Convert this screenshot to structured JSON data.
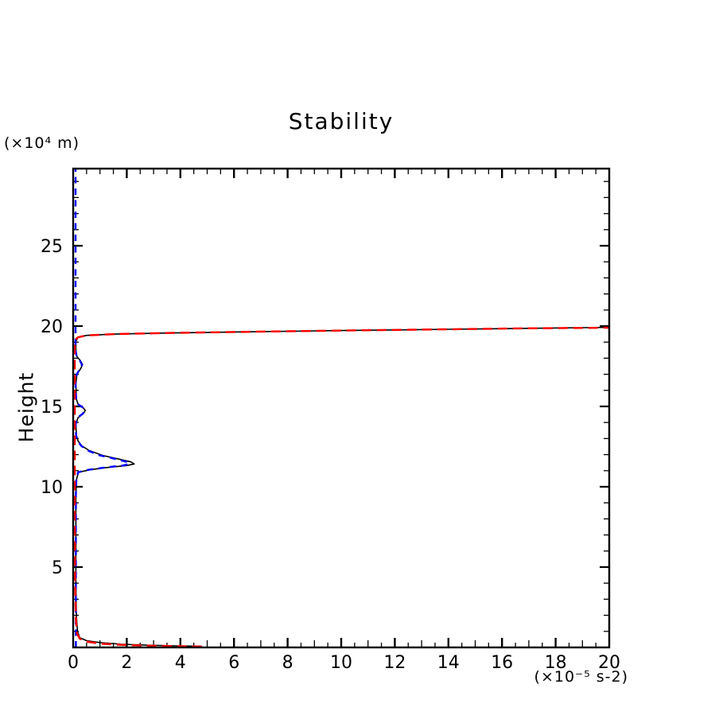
{
  "figure": {
    "title": "Stability",
    "y_axis_label": "Height",
    "y_unit_label": "(×10⁴ m)",
    "x_unit_label": "(×10⁻⁵ s-2)"
  },
  "chart_data": {
    "type": "line",
    "title": "Stability",
    "xlabel": "(×10⁻⁵ s-2)",
    "ylabel": "Height (×10⁴ m)",
    "xlim": [
      0,
      20
    ],
    "ylim": [
      0,
      29.8
    ],
    "x_major_ticks": [
      0,
      2,
      4,
      6,
      8,
      10,
      12,
      14,
      16,
      18,
      20
    ],
    "x_medium_tick_step": 1,
    "x_minor_tick_step": 0.5,
    "y_major_ticks": [
      5,
      10,
      15,
      20,
      25
    ],
    "y_minor_tick_step": 1,
    "grid": false,
    "legend": "none",
    "axis_color": "#000000",
    "series": [
      {
        "name": "profile-solid-black",
        "color": "#000000",
        "style": "solid",
        "width": 1.6,
        "points": [
          [
            4.8,
            0.07
          ],
          [
            3.8,
            0.1
          ],
          [
            2.8,
            0.14
          ],
          [
            1.8,
            0.2
          ],
          [
            1.0,
            0.3
          ],
          [
            0.5,
            0.42
          ],
          [
            0.25,
            0.6
          ],
          [
            0.16,
            1.0
          ],
          [
            0.12,
            2.0
          ],
          [
            0.1,
            4.0
          ],
          [
            0.1,
            7.0
          ],
          [
            0.1,
            9.5
          ],
          [
            0.13,
            10.5
          ],
          [
            0.2,
            10.9
          ],
          [
            0.6,
            11.05
          ],
          [
            1.3,
            11.2
          ],
          [
            2.0,
            11.32
          ],
          [
            2.28,
            11.42
          ],
          [
            2.15,
            11.55
          ],
          [
            1.7,
            11.72
          ],
          [
            1.1,
            11.95
          ],
          [
            0.6,
            12.25
          ],
          [
            0.32,
            12.55
          ],
          [
            0.18,
            12.85
          ],
          [
            0.12,
            13.2
          ],
          [
            0.1,
            13.9
          ],
          [
            0.18,
            14.3
          ],
          [
            0.38,
            14.55
          ],
          [
            0.45,
            14.75
          ],
          [
            0.36,
            14.95
          ],
          [
            0.18,
            15.15
          ],
          [
            0.12,
            15.45
          ],
          [
            0.1,
            16.4
          ],
          [
            0.14,
            17.0
          ],
          [
            0.28,
            17.35
          ],
          [
            0.35,
            17.6
          ],
          [
            0.27,
            17.85
          ],
          [
            0.14,
            18.1
          ],
          [
            0.1,
            18.5
          ],
          [
            0.1,
            19.05
          ],
          [
            0.18,
            19.3
          ],
          [
            0.5,
            19.42
          ],
          [
            1.5,
            19.5
          ],
          [
            3.5,
            19.57
          ],
          [
            6.5,
            19.64
          ],
          [
            10,
            19.72
          ],
          [
            14,
            19.8
          ],
          [
            17,
            19.86
          ],
          [
            20,
            19.92
          ]
        ]
      },
      {
        "name": "profile-blue-dashed",
        "color": "#0000ff",
        "style": "dashed",
        "dash": [
          8,
          6.5
        ],
        "width": 2.4,
        "points": [
          [
            0.1,
            0
          ],
          [
            0.1,
            5.0
          ],
          [
            0.1,
            9.5
          ],
          [
            0.12,
            10.5
          ],
          [
            0.18,
            10.9
          ],
          [
            0.55,
            11.05
          ],
          [
            1.2,
            11.2
          ],
          [
            1.85,
            11.32
          ],
          [
            2.1,
            11.42
          ],
          [
            2.0,
            11.55
          ],
          [
            1.6,
            11.72
          ],
          [
            1.0,
            11.95
          ],
          [
            0.55,
            12.25
          ],
          [
            0.3,
            12.55
          ],
          [
            0.17,
            12.85
          ],
          [
            0.11,
            13.2
          ],
          [
            0.09,
            13.9
          ],
          [
            0.17,
            14.3
          ],
          [
            0.36,
            14.55
          ],
          [
            0.43,
            14.75
          ],
          [
            0.34,
            14.95
          ],
          [
            0.17,
            15.15
          ],
          [
            0.11,
            15.45
          ],
          [
            0.09,
            16.4
          ],
          [
            0.13,
            17.0
          ],
          [
            0.26,
            17.35
          ],
          [
            0.33,
            17.6
          ],
          [
            0.25,
            17.85
          ],
          [
            0.13,
            18.1
          ],
          [
            0.09,
            18.5
          ],
          [
            0.09,
            19.4
          ],
          [
            0.09,
            24.0
          ],
          [
            0.09,
            29.8
          ]
        ]
      },
      {
        "name": "profile-red-dashed",
        "color": "#ff0000",
        "style": "dashed",
        "dash": [
          12,
          7
        ],
        "width": 2.5,
        "points": [
          [
            4.8,
            0.05
          ],
          [
            3.8,
            0.08
          ],
          [
            2.8,
            0.11
          ],
          [
            1.8,
            0.16
          ],
          [
            1.0,
            0.24
          ],
          [
            0.5,
            0.36
          ],
          [
            0.24,
            0.55
          ],
          [
            0.14,
            0.9
          ],
          [
            0.1,
            1.8
          ],
          [
            0.07,
            4.0
          ],
          [
            0.06,
            8.0
          ],
          [
            0.06,
            14.0
          ],
          [
            0.06,
            18.8
          ],
          [
            0.08,
            19.15
          ],
          [
            0.18,
            19.3
          ],
          [
            0.5,
            19.42
          ],
          [
            1.5,
            19.5
          ],
          [
            3.5,
            19.57
          ],
          [
            6.5,
            19.64
          ],
          [
            10,
            19.72
          ],
          [
            14,
            19.8
          ],
          [
            17,
            19.86
          ],
          [
            20,
            19.9
          ]
        ]
      }
    ]
  }
}
